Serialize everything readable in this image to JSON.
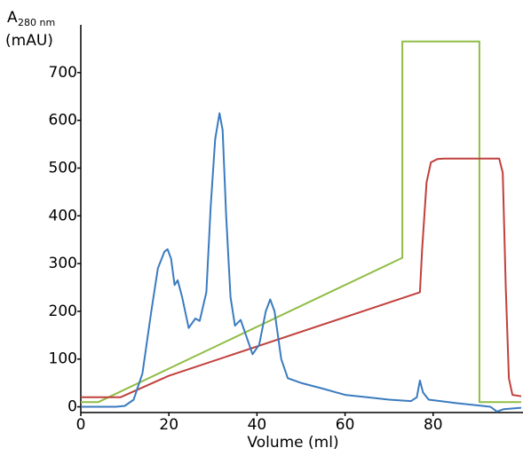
{
  "chart_data": {
    "type": "line",
    "x_label": "Volume (ml)",
    "y_label": {
      "main": "A",
      "subscript": "280 nm",
      "unit": "(mAU)"
    },
    "xlim": [
      0,
      100
    ],
    "xticks": [
      0,
      20,
      40,
      60,
      80
    ],
    "ylim": [
      -12,
      800
    ],
    "yticks": [
      0,
      100,
      200,
      300,
      400,
      500,
      600,
      700
    ],
    "series": [
      {
        "color": "#3a7bbf",
        "x": [
          0,
          8,
          10,
          12,
          14,
          16,
          17.5,
          19,
          19.7,
          20.5,
          21.3,
          22,
          23,
          24.5,
          26,
          27,
          28.5,
          29.5,
          30.5,
          31.5,
          32.2,
          33,
          34,
          35,
          36.3,
          37.5,
          39,
          40.5,
          42,
          43,
          44,
          45.5,
          47,
          50,
          55,
          60,
          65,
          70,
          75,
          76.3,
          77,
          77.7,
          79,
          85,
          90,
          93,
          94.5,
          96,
          100
        ],
        "values": [
          0,
          0,
          2,
          15,
          70,
          200,
          290,
          325,
          330,
          310,
          255,
          265,
          230,
          165,
          185,
          180,
          240,
          420,
          560,
          615,
          580,
          400,
          230,
          170,
          182,
          150,
          110,
          130,
          200,
          225,
          200,
          100,
          60,
          50,
          38,
          25,
          20,
          15,
          12,
          20,
          55,
          30,
          15,
          8,
          3,
          0,
          -10,
          -5,
          -2
        ]
      },
      {
        "color": "#c0403c",
        "x": [
          0,
          9,
          20,
          77,
          77.5,
          78.5,
          79.5,
          81,
          82.5,
          95,
          95.8,
          96.5,
          97.2,
          98,
          100
        ],
        "values": [
          20,
          20,
          65,
          240,
          330,
          470,
          512,
          519,
          520,
          520,
          490,
          250,
          60,
          25,
          22
        ]
      },
      {
        "color": "#8fbd45",
        "x": [
          0,
          4,
          73,
          73,
          90.5,
          90.5,
          100
        ],
        "values": [
          10,
          10,
          312,
          765,
          765,
          10,
          10
        ]
      }
    ]
  }
}
